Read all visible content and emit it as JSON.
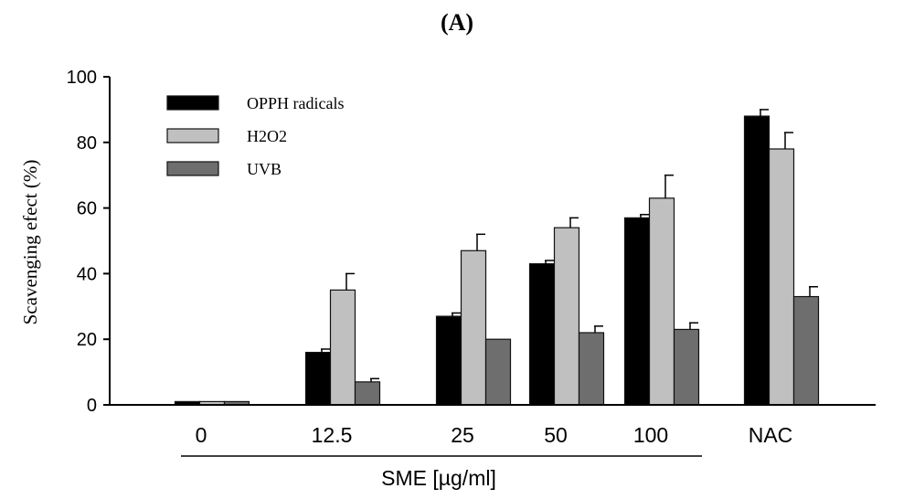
{
  "panel_label": "(A)",
  "chart_data": {
    "type": "bar",
    "ylabel": "Scavenging efect (%)",
    "xlabel": "SME [µg/ml]",
    "ylim": [
      0,
      100
    ],
    "yticks": [
      0,
      20,
      40,
      60,
      80,
      100
    ],
    "categories": [
      "0",
      "12.5",
      "25",
      "50",
      "100",
      "NAC"
    ],
    "grouped_under_xlabel": [
      "0",
      "12.5",
      "25",
      "50",
      "100"
    ],
    "legend_position": "top-left",
    "grid": false,
    "error_bars": true,
    "series": [
      {
        "name": "OPPH radicals",
        "color": "#000000",
        "values": [
          1,
          16,
          27,
          43,
          57,
          88
        ],
        "errors": [
          0,
          1,
          1,
          1,
          1,
          2
        ]
      },
      {
        "name": "H2O2",
        "color": "#c0c0c0",
        "values": [
          1,
          35,
          47,
          54,
          63,
          78
        ],
        "errors": [
          0,
          5,
          5,
          3,
          7,
          5
        ]
      },
      {
        "name": "UVB",
        "color": "#6e6e6e",
        "values": [
          1,
          7,
          20,
          22,
          23,
          33
        ],
        "errors": [
          0,
          1,
          0,
          2,
          2,
          3
        ]
      }
    ]
  }
}
